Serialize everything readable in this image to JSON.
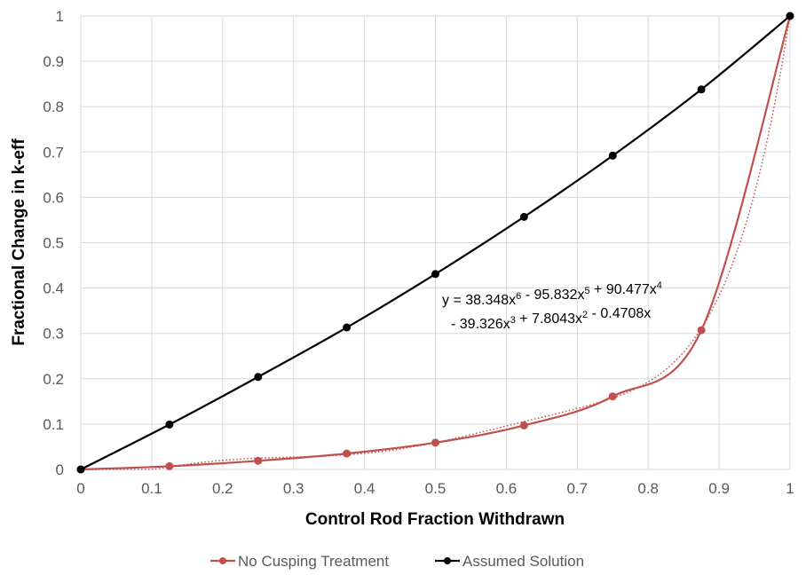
{
  "chart_data": {
    "type": "line",
    "xlabel": "Control Rod Fraction Withdrawn",
    "ylabel": "Fractional Change in k-eff",
    "xlim": [
      0,
      1
    ],
    "ylim": [
      0,
      1
    ],
    "x_ticks": [
      "0",
      "0.1",
      "0.2",
      "0.3",
      "0.4",
      "0.5",
      "0.6",
      "0.7",
      "0.8",
      "0.9",
      "1"
    ],
    "y_ticks": [
      "0",
      "0.1",
      "0.2",
      "0.3",
      "0.4",
      "0.5",
      "0.6",
      "0.7",
      "0.8",
      "0.9",
      "1"
    ],
    "grid": true,
    "legend_position": "bottom",
    "series": [
      {
        "name": "No Cusping Treatment",
        "color": "#c0504d",
        "x": [
          0,
          0.125,
          0.25,
          0.375,
          0.5,
          0.625,
          0.75,
          0.875,
          1
        ],
        "values": [
          0,
          0.007,
          0.019,
          0.035,
          0.059,
          0.097,
          0.161,
          0.307,
          1.0
        ]
      },
      {
        "name": "Assumed Solution",
        "color": "#000000",
        "x": [
          0,
          0.125,
          0.25,
          0.375,
          0.5,
          0.625,
          0.75,
          0.875,
          1
        ],
        "values": [
          0,
          0.099,
          0.204,
          0.313,
          0.431,
          0.557,
          0.692,
          0.838,
          1.0
        ]
      }
    ],
    "trendline": {
      "series": "No Cusping Treatment",
      "style": "dotted",
      "color": "#c0504d",
      "coefficients": [
        38.348,
        -95.832,
        90.477,
        -39.326,
        7.8043,
        -0.4708
      ],
      "equation_line1": "y = 38.348x",
      "equation_line2": "- 39.326x"
    },
    "equation": {
      "l1": [
        {
          "t": "y = 38.348x"
        },
        {
          "t": "6",
          "sup": true
        },
        {
          "t": " - 95.832x"
        },
        {
          "t": "5",
          "sup": true
        },
        {
          "t": " + 90.477x"
        },
        {
          "t": "4",
          "sup": true
        }
      ],
      "l2": [
        {
          "t": "- 39.326x"
        },
        {
          "t": "3",
          "sup": true
        },
        {
          "t": " + 7.8043x"
        },
        {
          "t": "2",
          "sup": true
        },
        {
          "t": " - 0.4708x"
        }
      ]
    }
  }
}
